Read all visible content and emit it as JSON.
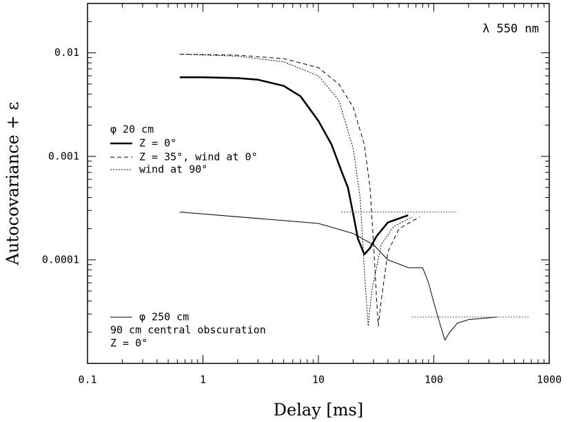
{
  "chart_data": {
    "type": "line",
    "x_label": "Delay [ms]",
    "y_label": "Autocovariance + ε",
    "annotation": "λ 550 nm",
    "legend_title": "φ 20 cm",
    "legend_notes": [
      "90 cm central obscuration",
      "Z = 0°"
    ],
    "log_x": true,
    "log_y": true,
    "xlim": [
      0.1,
      1000
    ],
    "xticks": [
      0.1,
      1,
      10,
      100,
      1000
    ],
    "ylim": [
      1e-05,
      0.03
    ],
    "yticks": [
      0.0001,
      0.001,
      0.01
    ],
    "series": [
      {
        "name": "Z = 0°",
        "color": "#000000",
        "style": "solid",
        "width": 2.6,
        "x": [
          0.63,
          1,
          2,
          3,
          5,
          7,
          10,
          13,
          16,
          18,
          20,
          22,
          25,
          28,
          32,
          40,
          60
        ],
        "values": [
          0.0058,
          0.0058,
          0.0057,
          0.0055,
          0.0048,
          0.0038,
          0.0022,
          0.0013,
          0.0007,
          0.0005,
          0.00028,
          0.00016,
          0.000113,
          0.00013,
          0.00017,
          0.00023,
          0.00027
        ]
      },
      {
        "name": "Z = 35°, wind at 0°",
        "color": "#000000",
        "style": "dashed",
        "width": 1,
        "x": [
          0.63,
          2,
          5,
          10,
          15,
          20,
          25,
          28,
          30,
          32,
          33,
          35,
          40,
          50,
          75
        ],
        "values": [
          0.0097,
          0.0095,
          0.0088,
          0.0072,
          0.005,
          0.003,
          0.0013,
          0.0005,
          0.00015,
          4e-05,
          2.3e-05,
          4e-05,
          0.00012,
          0.0002,
          0.00026
        ]
      },
      {
        "name": "wind at 90°",
        "color": "#000000",
        "style": "dotted",
        "width": 1,
        "x": [
          0.63,
          2,
          5,
          10,
          15,
          20,
          23,
          25,
          27,
          29,
          35,
          45,
          65
        ],
        "values": [
          0.0097,
          0.0093,
          0.0082,
          0.006,
          0.0035,
          0.0012,
          0.0004,
          8e-05,
          2.3e-05,
          5e-05,
          0.00014,
          0.00021,
          0.00026
        ]
      },
      {
        "name": "φ 250 cm",
        "color": "#000000",
        "style": "solid",
        "width": 1,
        "x": [
          0.63,
          10,
          20,
          30,
          40,
          50,
          60,
          80,
          90,
          100,
          115,
          125,
          135,
          160,
          200,
          350
        ],
        "values": [
          0.00029,
          0.000225,
          0.00018,
          0.00014,
          0.0001,
          9.1e-05,
          8.4e-05,
          8.4e-05,
          6e-05,
          3.86e-05,
          2.25e-05,
          1.68e-05,
          1.95e-05,
          2.45e-05,
          2.65e-05,
          2.8e-05
        ]
      },
      {
        "color": "#555555",
        "style": "dotted",
        "width": 1,
        "x": [
          15.8,
          160
        ],
        "values": [
          0.00029,
          0.00029
        ]
      },
      {
        "color": "#555555",
        "style": "dotted",
        "width": 1,
        "x": [
          64,
          670
        ],
        "values": [
          2.8e-05,
          2.8e-05
        ]
      }
    ]
  }
}
